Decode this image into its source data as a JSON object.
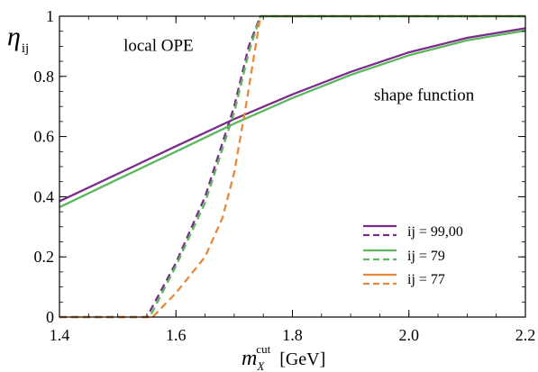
{
  "chart_data": {
    "type": "line",
    "ylabel_main": "η",
    "ylabel_sub": "ij",
    "xlabel_main": "m",
    "xlabel_sub": "X",
    "xlabel_sup": "cut",
    "xlabel_unit": "[GeV]",
    "xlim": [
      1.4,
      2.2
    ],
    "ylim": [
      0,
      1
    ],
    "xticks": [
      1.4,
      1.6,
      1.8,
      2.0,
      2.2
    ],
    "xtick_labels": [
      "1.4",
      "1.6",
      "1.8",
      "2.0",
      "2.2"
    ],
    "yticks": [
      0,
      0.2,
      0.4,
      0.6,
      0.8,
      1
    ],
    "ytick_labels": [
      "0",
      "0.2",
      "0.4",
      "0.6",
      "0.8",
      "1"
    ],
    "grid": false,
    "legend_position": "bottom-right",
    "annotations": [
      {
        "text": "local OPE",
        "x": 1.51,
        "y": 0.885
      },
      {
        "text": "shape function",
        "x": 1.94,
        "y": 0.72
      }
    ],
    "legend": [
      {
        "label": "ij = 99,00",
        "color": "#7b2b8c"
      },
      {
        "label": "ij = 79",
        "color": "#5cb85c"
      },
      {
        "label": "ij = 77",
        "color": "#e8883a"
      }
    ],
    "series": [
      {
        "label_ref": "ij = 99,00 (shape function, solid)",
        "color": "#7b2b8c",
        "dash": false,
        "x": [
          1.4,
          1.5,
          1.6,
          1.7,
          1.8,
          1.9,
          2.0,
          2.1,
          2.2
        ],
        "y": [
          0.385,
          0.476,
          0.568,
          0.658,
          0.74,
          0.815,
          0.88,
          0.928,
          0.96
        ]
      },
      {
        "label_ref": "ij = 99,00 (local OPE, dashed)",
        "color": "#7b2b8c",
        "dash": true,
        "x": [
          1.4,
          1.55,
          1.6,
          1.65,
          1.7,
          1.725,
          1.745,
          2.2
        ],
        "y": [
          0,
          0,
          0.18,
          0.4,
          0.7,
          0.9,
          1,
          1
        ]
      },
      {
        "label_ref": "ij = 79 (shape function, solid)",
        "color": "#5cb85c",
        "dash": false,
        "x": [
          1.4,
          1.5,
          1.6,
          1.7,
          1.8,
          1.9,
          2.0,
          2.1,
          2.2
        ],
        "y": [
          0.365,
          0.458,
          0.55,
          0.643,
          0.728,
          0.805,
          0.87,
          0.92,
          0.952
        ]
      },
      {
        "label_ref": "ij = 79 (local OPE, dashed)",
        "color": "#5cb85c",
        "dash": true,
        "x": [
          1.4,
          1.555,
          1.6,
          1.65,
          1.7,
          1.725,
          1.745,
          2.2
        ],
        "y": [
          0,
          0,
          0.17,
          0.38,
          0.68,
          0.88,
          1,
          1
        ]
      },
      {
        "label_ref": "ij = 77 (local OPE, dashed)",
        "color": "#e8883a",
        "dash": true,
        "x": [
          1.4,
          1.56,
          1.6,
          1.65,
          1.68,
          1.7,
          1.72,
          1.745,
          2.2
        ],
        "y": [
          0,
          0,
          0.08,
          0.2,
          0.33,
          0.48,
          0.7,
          1,
          1
        ]
      },
      {
        "label_ref": "ij = 77 (shape function, solid)",
        "color": "#e8883a",
        "dash": false,
        "x": [
          1.745,
          2.2
        ],
        "y": [
          1,
          1
        ]
      },
      {
        "label_ref": "ij = 79 (local OPE top, solid)",
        "color": "#5cb85c",
        "dash": false,
        "x": [
          1.745,
          2.2
        ],
        "y": [
          1,
          1
        ]
      }
    ]
  }
}
